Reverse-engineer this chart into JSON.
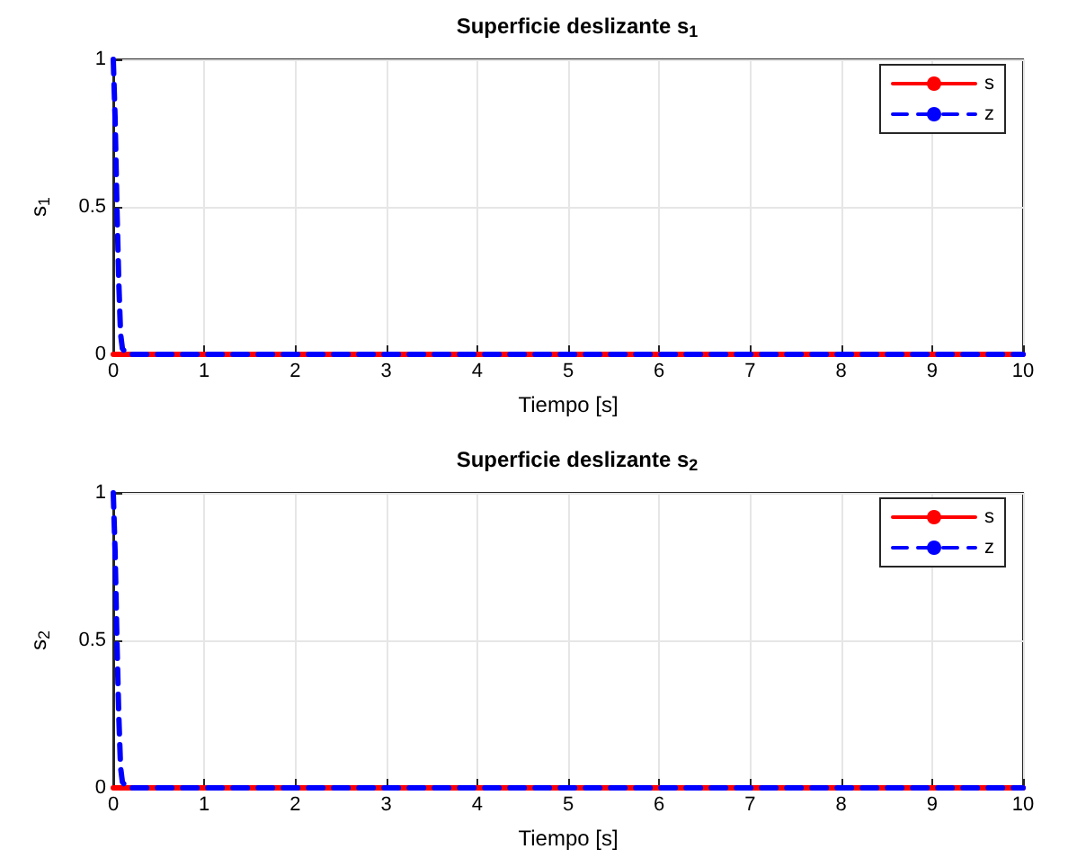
{
  "chart_data": [
    {
      "type": "line",
      "title": "Superficie deslizante s$_{1}$",
      "xlabel": "Tiempo [s]",
      "ylabel": "s$_{1}$",
      "xlim": [
        0,
        10
      ],
      "xticks": [
        0,
        1,
        2,
        3,
        4,
        5,
        6,
        7,
        8,
        9,
        10
      ],
      "ylim": [
        0,
        1
      ],
      "yticks": [
        0,
        0.5,
        1
      ],
      "grid": true,
      "legend": "top right",
      "series": [
        {
          "name": "s",
          "color": "#ff0000",
          "line_style": "solid",
          "x": [
            0,
            10
          ],
          "values": [
            0,
            0
          ]
        },
        {
          "name": "z",
          "color": "#0000ff",
          "line_style": "dashed",
          "x": [
            0,
            0.02,
            0.04,
            0.06,
            0.08,
            0.1,
            0.15,
            10
          ],
          "values": [
            1,
            0.8,
            0.5,
            0.25,
            0.07,
            0.02,
            0,
            0
          ]
        }
      ]
    },
    {
      "type": "line",
      "title": "Superficie deslizante s$_{2}$",
      "xlabel": "Tiempo [s]",
      "ylabel": "s$_{2}$",
      "xlim": [
        0,
        10
      ],
      "xticks": [
        0,
        1,
        2,
        3,
        4,
        5,
        6,
        7,
        8,
        9,
        10
      ],
      "ylim": [
        0,
        1
      ],
      "yticks": [
        0,
        0.5,
        1
      ],
      "grid": true,
      "legend": "top right",
      "series": [
        {
          "name": "s",
          "color": "#ff0000",
          "line_style": "solid",
          "x": [
            0,
            10
          ],
          "values": [
            0,
            0
          ]
        },
        {
          "name": "z",
          "color": "#0000ff",
          "line_style": "dashed",
          "x": [
            0,
            0.02,
            0.04,
            0.06,
            0.08,
            0.1,
            0.15,
            10
          ],
          "values": [
            1,
            0.8,
            0.5,
            0.25,
            0.07,
            0.02,
            0,
            0
          ]
        }
      ]
    }
  ]
}
